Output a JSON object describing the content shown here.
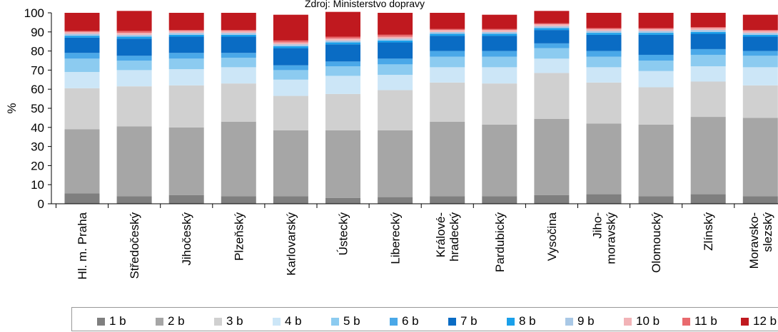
{
  "source_note": "Zdroj: Ministerstvo dopravy",
  "chart_data": {
    "type": "bar",
    "stacked": true,
    "ylabel": "%",
    "ylim": [
      0,
      100
    ],
    "yticks": [
      0,
      10,
      20,
      30,
      40,
      50,
      60,
      70,
      80,
      90,
      100
    ],
    "categories": [
      [
        "Hl. m. Praha"
      ],
      [
        "Středočeský"
      ],
      [
        "Jihočeský"
      ],
      [
        "Plzeňský"
      ],
      [
        "Karlovarský"
      ],
      [
        "Ústecký"
      ],
      [
        "Liberecký"
      ],
      [
        "Králové-",
        "hradecký"
      ],
      [
        "Pardubický"
      ],
      [
        "Vysočina"
      ],
      [
        "Jiho-",
        "moravský"
      ],
      [
        "Olomoucký"
      ],
      [
        "Zlínský"
      ],
      [
        "Moravsko-",
        "slezský"
      ]
    ],
    "series": [
      {
        "name": "1 b",
        "color": "#7f7f7f",
        "values": [
          5.5,
          4.0,
          4.5,
          4.0,
          4.0,
          3.0,
          3.5,
          4.0,
          4.0,
          4.5,
          5.0,
          4.0,
          5.0,
          4.0
        ]
      },
      {
        "name": "2 b",
        "color": "#a6a6a6",
        "values": [
          33.5,
          36.5,
          35.5,
          39.0,
          34.5,
          35.5,
          35.0,
          39.0,
          37.5,
          40.0,
          37.0,
          37.5,
          40.5,
          41.0
        ]
      },
      {
        "name": "3 b",
        "color": "#d0d0d0",
        "values": [
          21.5,
          21.0,
          22.0,
          20.0,
          18.0,
          19.0,
          21.0,
          20.5,
          21.5,
          24.0,
          21.5,
          19.5,
          18.5,
          17.0
        ]
      },
      {
        "name": "4 b",
        "color": "#cce6f7",
        "values": [
          8.5,
          8.5,
          8.5,
          8.5,
          8.5,
          9.5,
          8.0,
          8.0,
          8.5,
          7.5,
          8.0,
          8.5,
          8.0,
          9.5
        ]
      },
      {
        "name": "5 b",
        "color": "#8ccbf0",
        "values": [
          7.0,
          5.0,
          5.5,
          5.0,
          5.0,
          5.0,
          5.5,
          5.5,
          5.5,
          5.5,
          5.5,
          5.5,
          6.0,
          6.0
        ]
      },
      {
        "name": "6 b",
        "color": "#4aa8e8",
        "values": [
          3.0,
          2.5,
          3.0,
          2.5,
          2.5,
          2.5,
          3.0,
          3.0,
          3.0,
          2.5,
          3.0,
          3.0,
          3.0,
          2.5
        ]
      },
      {
        "name": "7 b",
        "color": "#0a6cc4",
        "values": [
          8.0,
          9.0,
          8.5,
          8.5,
          9.0,
          9.0,
          8.5,
          8.0,
          8.0,
          7.0,
          8.5,
          10.5,
          8.0,
          7.5
        ]
      },
      {
        "name": "8 b",
        "color": "#1aa0ea",
        "values": [
          1.0,
          1.0,
          1.0,
          1.0,
          1.0,
          1.0,
          1.0,
          1.0,
          1.0,
          1.0,
          1.0,
          1.0,
          1.0,
          1.0
        ]
      },
      {
        "name": "9 b",
        "color": "#a9c8e6",
        "values": [
          1.0,
          1.0,
          1.0,
          1.0,
          1.0,
          1.0,
          1.0,
          1.0,
          1.0,
          1.0,
          1.0,
          1.0,
          1.0,
          1.0
        ]
      },
      {
        "name": "10 b",
        "color": "#f2b3b7",
        "values": [
          1.0,
          1.0,
          1.0,
          1.0,
          1.0,
          1.0,
          1.0,
          1.0,
          1.0,
          1.0,
          1.0,
          1.0,
          1.0,
          1.0
        ]
      },
      {
        "name": "11 b",
        "color": "#e96a6e",
        "values": [
          0.5,
          1.0,
          0.5,
          0.5,
          1.0,
          1.0,
          1.0,
          0.5,
          0.5,
          0.5,
          0.5,
          0.5,
          0.5,
          0.5
        ]
      },
      {
        "name": "12 b",
        "color": "#c0191f",
        "values": [
          9.5,
          10.5,
          9.0,
          9.0,
          13.5,
          13.0,
          11.5,
          8.5,
          7.5,
          6.5,
          8.0,
          8.0,
          7.5,
          8.0
        ]
      }
    ],
    "legend_position": "bottom",
    "grid": false
  }
}
